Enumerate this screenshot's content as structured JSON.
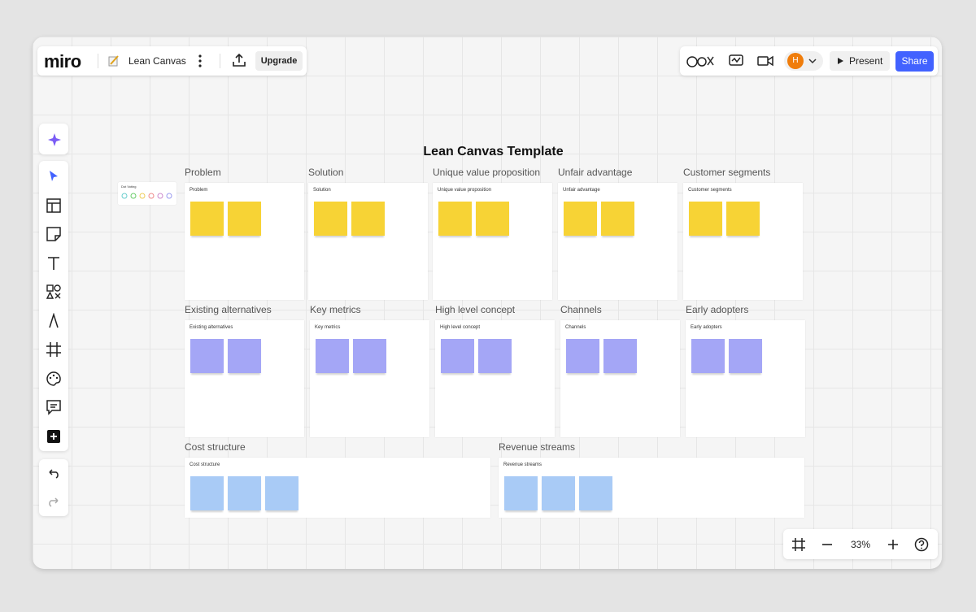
{
  "header": {
    "logo": "miro",
    "board_name": "Lean Canvas",
    "upgrade": "Upgrade",
    "avatar": "H",
    "present": "Present",
    "share": "Share"
  },
  "board": {
    "title": "Lean Canvas Template",
    "dot_voting": "Dot Voting",
    "frames": [
      {
        "label": "Problem",
        "title": "Problem"
      },
      {
        "label": "Solution",
        "title": "Solution"
      },
      {
        "label": "Unique value proposition",
        "title": "Unique value proposition"
      },
      {
        "label": "Unfair advantage",
        "title": "Unfair advantage"
      },
      {
        "label": "Customer segments",
        "title": "Customer segments"
      },
      {
        "label": "Existing alternatives",
        "title": "Existing alternatives"
      },
      {
        "label": "Key metrics",
        "title": "Key metrics"
      },
      {
        "label": "High level concept",
        "title": "High level concept"
      },
      {
        "label": "Channels",
        "title": "Channels"
      },
      {
        "label": "Early adopters",
        "title": "Early adopters"
      },
      {
        "label": "Cost structure",
        "title": "Cost structure"
      },
      {
        "label": "Revenue streams",
        "title": "Revenue streams"
      }
    ]
  },
  "zoom": "33%"
}
